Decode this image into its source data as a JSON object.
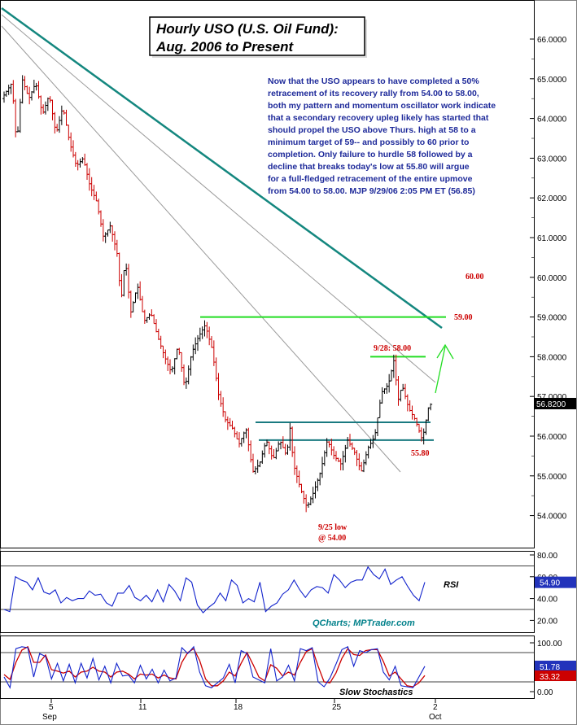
{
  "chart_data": [
    {
      "type": "bar",
      "style": "hourly OHLC bars",
      "title": "Hourly USO (U.S. Oil Fund):",
      "subtitle": "Aug. 2006 to Present",
      "commentary": [
        "Now that the USO appears to have completed a 50%",
        "retracement of its recovery rally from 54.00 to 58.00,",
        "both my pattern and momentum oscillator work indicate",
        "that a secondary recovery upleg likely has started that",
        "should propel the USO above Thurs. high at 58 to a",
        "minimum target of 59-- and possibly to 60 prior to",
        "completion.  Only failure to hurdle 58 followed by a",
        "decline that breaks today's low at 55.80 will argue",
        "for a full-fledged retracement of the entire upmove",
        "from 54.00 to 58.00.  MJP 9/29/06  2:05 PM ET  (56.85)"
      ],
      "ylim": [
        53.4,
        67.0
      ],
      "ytick_labels": [
        "66.0000",
        "65.0000",
        "64.0000",
        "63.0000",
        "62.0000",
        "61.0000",
        "60.0000",
        "59.0000",
        "58.0000",
        "57.0000",
        "56.0000",
        "55.0000",
        "54.0000"
      ],
      "ytick_values": [
        66,
        65,
        64,
        63,
        62,
        61,
        60,
        59,
        58,
        57,
        56,
        55,
        54
      ],
      "xtick_labels": [
        "5",
        "11",
        "18",
        "25",
        "2"
      ],
      "month_labels": [
        "Sep",
        "Oct"
      ],
      "last_price": "56.8200",
      "last_value": 56.82,
      "price_path": [
        [
          0,
          64.5
        ],
        [
          1.5,
          64.9
        ],
        [
          2.2,
          63.3
        ],
        [
          3,
          65.0
        ],
        [
          4,
          64.5
        ],
        [
          5,
          64.9
        ],
        [
          6,
          64.1
        ],
        [
          7,
          64.6
        ],
        [
          8,
          63.6
        ],
        [
          9,
          64.3
        ],
        [
          10,
          63.4
        ],
        [
          11,
          62.8
        ],
        [
          12,
          63.0
        ],
        [
          13,
          62.3
        ],
        [
          14,
          61.9
        ],
        [
          15,
          61.0
        ],
        [
          16,
          61.3
        ],
        [
          17,
          60.6
        ],
        [
          17.6,
          59.4
        ],
        [
          18.2,
          60.5
        ],
        [
          19,
          59.1
        ],
        [
          20,
          59.8
        ],
        [
          21,
          58.9
        ],
        [
          22,
          59.1
        ],
        [
          23,
          58.5
        ],
        [
          24,
          58.0
        ],
        [
          25,
          57.6
        ],
        [
          26,
          58.3
        ],
        [
          27,
          57.2
        ],
        [
          28,
          58.1
        ],
        [
          29,
          58.5
        ],
        [
          30,
          58.8
        ],
        [
          31,
          58.2
        ],
        [
          32,
          57.0
        ],
        [
          33,
          56.4
        ],
        [
          34,
          56.2
        ],
        [
          35,
          55.8
        ],
        [
          36,
          56.2
        ],
        [
          37,
          55.1
        ],
        [
          38,
          55.3
        ],
        [
          39,
          55.9
        ],
        [
          40,
          55.4
        ],
        [
          41,
          55.9
        ],
        [
          42,
          55.5
        ],
        [
          42.5,
          56.2
        ],
        [
          43,
          55.3
        ],
        [
          44,
          54.7
        ],
        [
          45,
          54.2
        ],
        [
          46,
          54.6
        ],
        [
          47,
          55.1
        ],
        [
          48,
          55.9
        ],
        [
          49,
          55.5
        ],
        [
          50,
          55.3
        ],
        [
          51,
          55.9
        ],
        [
          52,
          55.6
        ],
        [
          53,
          55.1
        ],
        [
          54,
          55.7
        ],
        [
          55,
          56.0
        ],
        [
          56,
          57.1
        ],
        [
          57,
          57.3
        ],
        [
          57.8,
          57.9
        ],
        [
          58.5,
          56.9
        ],
        [
          59,
          57.3
        ],
        [
          60,
          56.7
        ],
        [
          61,
          56.4
        ],
        [
          62,
          55.9
        ],
        [
          63,
          56.8
        ]
      ],
      "rsi": {
        "label": "RSI",
        "ytick_labels": [
          "80.00",
          "60.00",
          "40.00",
          "20.00"
        ],
        "ytick_values": [
          80,
          60,
          40,
          20
        ],
        "ylim": [
          10,
          85
        ],
        "last_value": "54.90",
        "values": [
          30,
          28,
          60,
          57,
          55,
          48,
          59,
          46,
          44,
          48,
          36,
          41,
          38,
          40,
          40,
          47,
          43,
          44,
          36,
          33,
          45,
          45,
          52,
          41,
          38,
          43,
          37,
          48,
          37,
          53,
          47,
          38,
          59,
          55,
          34,
          27,
          32,
          36,
          45,
          38,
          57,
          52,
          36,
          40,
          37,
          55,
          28,
          33,
          36,
          44,
          48,
          57,
          48,
          41,
          48,
          51,
          50,
          45,
          62,
          57,
          50,
          55,
          57,
          57,
          69,
          62,
          58,
          67,
          53,
          57,
          60,
          51,
          43,
          38,
          55
        ]
      },
      "stoch": {
        "label": "Slow Stochastics",
        "ytick_labels": [
          "100.00",
          "0.00"
        ],
        "ytick_values": [
          100,
          0
        ],
        "ylim": [
          -10,
          115
        ],
        "last_values": [
          "51.78",
          "33.32"
        ],
        "k_values": [
          30,
          8,
          88,
          92,
          90,
          30,
          78,
          72,
          26,
          58,
          22,
          56,
          18,
          58,
          28,
          68,
          24,
          52,
          18,
          58,
          32,
          34,
          18,
          54,
          26,
          46,
          18,
          44,
          22,
          28,
          90,
          78,
          92,
          40,
          12,
          8,
          18,
          28,
          56,
          18,
          84,
          78,
          30,
          24,
          18,
          88,
          22,
          30,
          54,
          22,
          88,
          84,
          90,
          20,
          10,
          28,
          56,
          86,
          92,
          52,
          84,
          80,
          86,
          88,
          40,
          24,
          52,
          12,
          10,
          8,
          30,
          52
        ],
        "d_values": [
          35,
          25,
          60,
          85,
          92,
          60,
          60,
          75,
          45,
          42,
          38,
          42,
          30,
          40,
          42,
          50,
          42,
          40,
          30,
          40,
          42,
          36,
          26,
          36,
          34,
          36,
          28,
          34,
          28,
          26,
          60,
          80,
          88,
          64,
          26,
          12,
          12,
          22,
          40,
          32,
          58,
          80,
          56,
          30,
          22,
          55,
          48,
          32,
          40,
          34,
          60,
          82,
          88,
          52,
          20,
          18,
          38,
          68,
          88,
          76,
          74,
          84,
          86,
          86,
          62,
          32,
          40,
          26,
          12,
          10,
          18,
          33
        ]
      },
      "legend": "none",
      "grid": false
    }
  ],
  "annotations": {
    "target_60": "60.00",
    "target_59": "59.00",
    "high_label": "9/28: 58.00",
    "low_label_1": "9/25 low",
    "low_label_2": "@ 54.00",
    "support_label": "55.80",
    "credit": "QCharts; MPTrader.com"
  },
  "colors": {
    "bar_up": "#000000",
    "bar_down": "#cc0000",
    "trend_main": "#14877f",
    "trend_thin": "#9a9a9a",
    "support_line": "#1a7a80",
    "target_line": "#22dd22",
    "annot_red": "#cc0000",
    "rsi_line": "#1122cc",
    "stoch_k": "#1122cc",
    "stoch_d": "#cc0000",
    "last_price_tag": "#000000",
    "rsi_tag": "#2233bb",
    "stoch_tag_k": "#2233bb",
    "stoch_tag_d": "#cc0000"
  }
}
